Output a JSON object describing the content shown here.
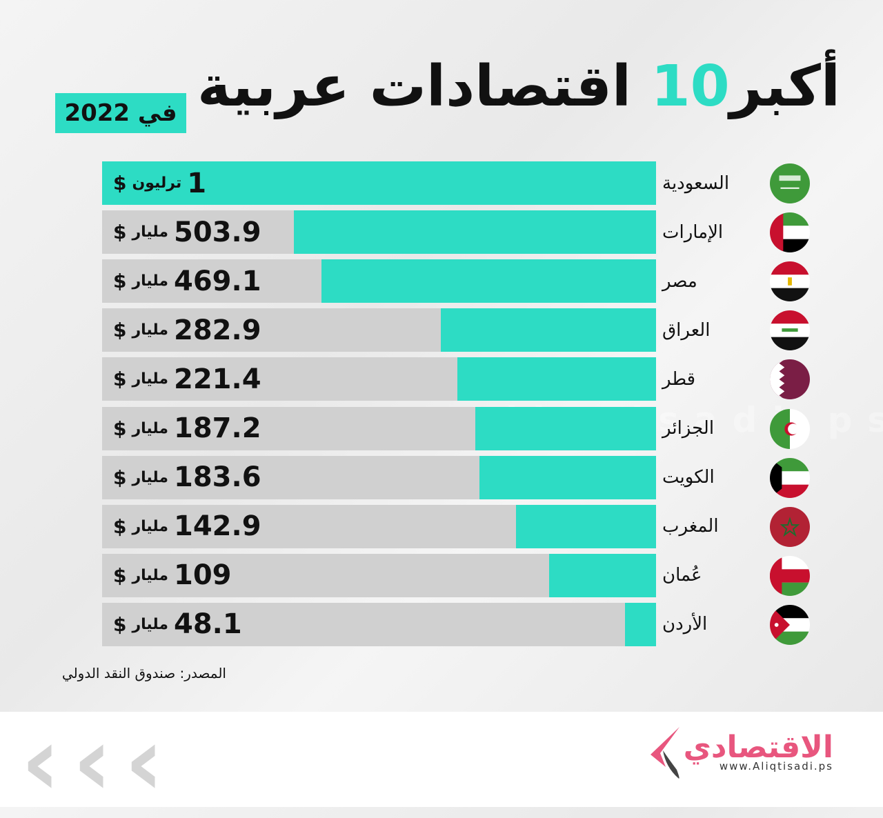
{
  "title": {
    "prefix": "أكبر",
    "number": "10",
    "suffix": "اقتصادات عربية"
  },
  "badge": "في 2022",
  "watermark": "www.Aliqtisadi.ps",
  "chart_data": {
    "type": "bar",
    "title": "أكبر 10 اقتصادات عربية في 2022",
    "unit": "billion USD",
    "categories": [
      "السعودية",
      "الإمارات",
      "مصر",
      "العراق",
      "قطر",
      "الجزائر",
      "الكويت",
      "المغرب",
      "عُمان",
      "الأردن"
    ],
    "values": [
      1000,
      503.9,
      469.1,
      282.9,
      221.4,
      187.2,
      183.6,
      142.9,
      109,
      48.1
    ],
    "fill": [
      1,
      0.654,
      0.604,
      0.389,
      0.359,
      0.326,
      0.319,
      0.253,
      0.193,
      0.056
    ],
    "labels": [
      {
        "num": "1",
        "unit": "ترليون",
        "cur": "$"
      },
      {
        "num": "503.9",
        "unit": "مليار",
        "cur": "$"
      },
      {
        "num": "469.1",
        "unit": "مليار",
        "cur": "$"
      },
      {
        "num": "282.9",
        "unit": "مليار",
        "cur": "$"
      },
      {
        "num": "221.4",
        "unit": "مليار",
        "cur": "$"
      },
      {
        "num": "187.2",
        "unit": "مليار",
        "cur": "$"
      },
      {
        "num": "183.6",
        "unit": "مليار",
        "cur": "$"
      },
      {
        "num": "142.9",
        "unit": "مليار",
        "cur": "$"
      },
      {
        "num": "109",
        "unit": "مليار",
        "cur": "$"
      },
      {
        "num": "48.1",
        "unit": "مليار",
        "cur": "$"
      }
    ],
    "flags": [
      "saudi",
      "uae",
      "egypt",
      "iraq",
      "qatar",
      "algeria",
      "kuwait",
      "morocco",
      "oman",
      "jordan"
    ]
  },
  "source": "المصدر:  صندوق النقد الدولي",
  "logo": {
    "arabic": "الاقتصادي",
    "url": "www.Aliqtisadi.ps"
  },
  "colors": {
    "accent": "#2ddcc4",
    "bar_bg": "#d0d0d0",
    "logo": "#e8567e"
  }
}
